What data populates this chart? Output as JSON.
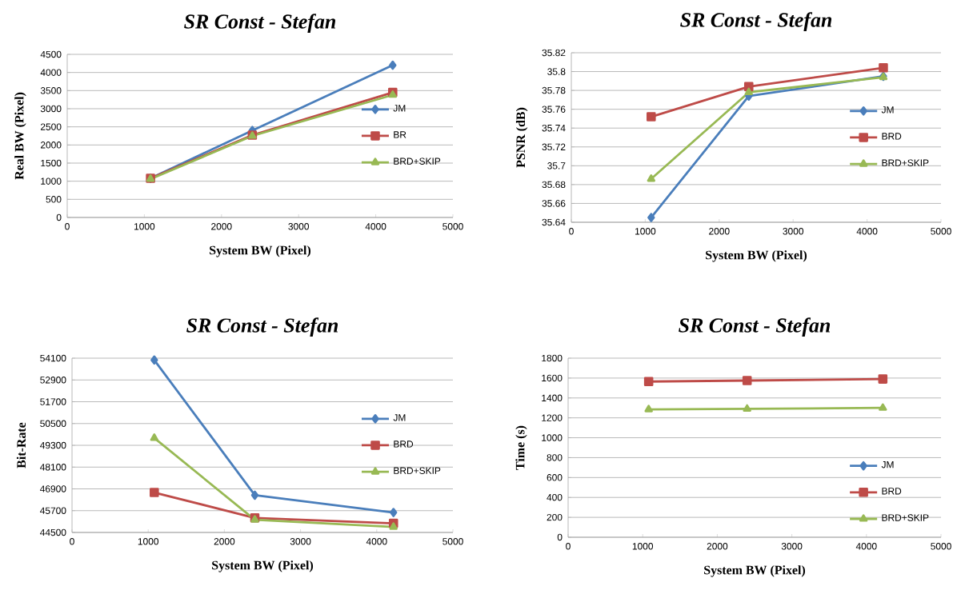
{
  "chart_data": [
    {
      "type": "line",
      "title": "SR Const - Stefan",
      "xlabel": "System BW (Pixel)",
      "ylabel": "Real BW (Pixel)",
      "xlim": [
        0,
        5000
      ],
      "xticks": [
        0,
        1000,
        2000,
        3000,
        4000,
        5000
      ],
      "ylim": [
        0,
        4500
      ],
      "yticks": [
        0,
        500,
        1000,
        1500,
        2000,
        2500,
        3000,
        3500,
        4000,
        4500
      ],
      "grid": "y",
      "legend": "right",
      "x": [
        1080,
        2400,
        4220
      ],
      "series": [
        {
          "name": "JM",
          "color": "#4a7ebb",
          "marker": "diamond",
          "values": [
            1080,
            2400,
            4200
          ]
        },
        {
          "name": "BR",
          "color": "#be4b48",
          "marker": "square",
          "values": [
            1080,
            2270,
            3450
          ]
        },
        {
          "name": "BRD+SKIP",
          "color": "#98b954",
          "marker": "triangle",
          "values": [
            1060,
            2250,
            3380
          ]
        }
      ]
    },
    {
      "type": "line",
      "title": "SR Const - Stefan",
      "xlabel": "System BW  (Pixel)",
      "ylabel": "PSNR  (dB)",
      "xlim": [
        0,
        5000
      ],
      "xticks": [
        0,
        1000,
        2000,
        3000,
        4000,
        5000
      ],
      "ylim": [
        35.64,
        35.82
      ],
      "yticks": [
        35.64,
        35.66,
        35.68,
        35.7,
        35.72,
        35.74,
        35.76,
        35.78,
        35.8,
        35.82
      ],
      "grid": "y",
      "legend": "right",
      "x": [
        1080,
        2400,
        4220
      ],
      "series": [
        {
          "name": "JM",
          "color": "#4a7ebb",
          "marker": "diamond",
          "values": [
            35.645,
            35.774,
            35.795
          ]
        },
        {
          "name": "BRD",
          "color": "#be4b48",
          "marker": "square",
          "values": [
            35.752,
            35.784,
            35.804
          ]
        },
        {
          "name": "BRD+SKIP",
          "color": "#98b954",
          "marker": "triangle",
          "values": [
            35.686,
            35.778,
            35.794
          ]
        }
      ]
    },
    {
      "type": "line",
      "title": "SR Const - Stefan",
      "xlabel": "System BW  (Pixel)",
      "ylabel": "Bit-Rate",
      "xlim": [
        0,
        5000
      ],
      "xticks": [
        0,
        1000,
        2000,
        3000,
        4000,
        5000
      ],
      "ylim": [
        44500,
        54100
      ],
      "yticks": [
        44500,
        45700,
        46900,
        48100,
        49300,
        50500,
        51700,
        52900,
        54100
      ],
      "grid": "y",
      "legend": "right",
      "x": [
        1080,
        2400,
        4220
      ],
      "series": [
        {
          "name": "JM",
          "color": "#4a7ebb",
          "marker": "diamond",
          "values": [
            54000,
            46550,
            45600
          ]
        },
        {
          "name": "BRD",
          "color": "#be4b48",
          "marker": "square",
          "values": [
            46700,
            45300,
            45000
          ]
        },
        {
          "name": "BRD+SKIP",
          "color": "#98b954",
          "marker": "triangle",
          "values": [
            49700,
            45200,
            44800
          ]
        }
      ]
    },
    {
      "type": "line",
      "title": "SR Const - Stefan",
      "xlabel": "System BW  (Pixel)",
      "ylabel": "Time (s)",
      "xlim": [
        0,
        5000
      ],
      "xticks": [
        0,
        1000,
        2000,
        3000,
        4000,
        5000
      ],
      "ylim": [
        0,
        1800
      ],
      "yticks": [
        0,
        200,
        400,
        600,
        800,
        1000,
        1200,
        1400,
        1600,
        1800
      ],
      "grid": "y",
      "legend": "bottom right",
      "x": [
        1080,
        2400,
        4220
      ],
      "series": [
        {
          "name": "JM",
          "color": "#4a7ebb",
          "marker": "diamond",
          "values": [
            null,
            null,
            null
          ]
        },
        {
          "name": "BRD",
          "color": "#be4b48",
          "marker": "square",
          "values": [
            1565,
            1575,
            1590
          ]
        },
        {
          "name": "BRD+SKIP",
          "color": "#98b954",
          "marker": "triangle",
          "values": [
            1285,
            1290,
            1300
          ]
        }
      ]
    }
  ]
}
